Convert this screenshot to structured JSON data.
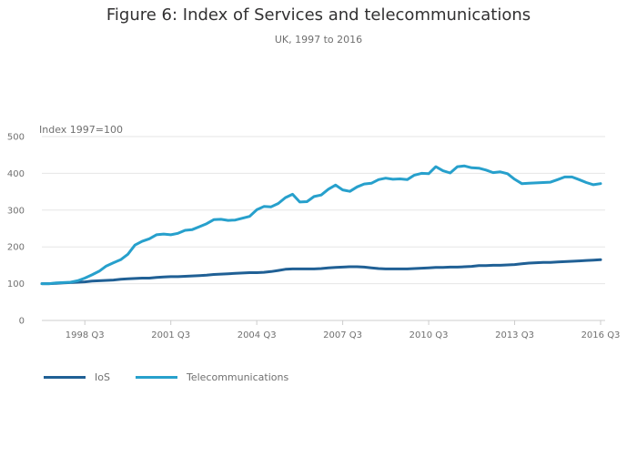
{
  "chart_data": {
    "type": "line",
    "title": "Figure 6: Index of Services and telecommunications",
    "subtitle": "UK, 1997 to 2016",
    "ylabel": "Index 1997=100",
    "xlabel": "",
    "ylim": [
      0,
      500
    ],
    "yticks": [
      0,
      100,
      200,
      300,
      400,
      500
    ],
    "xticks": [
      "1998 Q3",
      "2001 Q3",
      "2004 Q3",
      "2007 Q3",
      "2010 Q3",
      "2013 Q3",
      "2016 Q3"
    ],
    "grid": true,
    "legend": "bottom-left",
    "x": [
      "1997 Q1",
      "1997 Q2",
      "1997 Q3",
      "1997 Q4",
      "1998 Q1",
      "1998 Q2",
      "1998 Q3",
      "1998 Q4",
      "1999 Q1",
      "1999 Q2",
      "1999 Q3",
      "1999 Q4",
      "2000 Q1",
      "2000 Q2",
      "2000 Q3",
      "2000 Q4",
      "2001 Q1",
      "2001 Q2",
      "2001 Q3",
      "2001 Q4",
      "2002 Q1",
      "2002 Q2",
      "2002 Q3",
      "2002 Q4",
      "2003 Q1",
      "2003 Q2",
      "2003 Q3",
      "2003 Q4",
      "2004 Q1",
      "2004 Q2",
      "2004 Q3",
      "2004 Q4",
      "2005 Q1",
      "2005 Q2",
      "2005 Q3",
      "2005 Q4",
      "2006 Q1",
      "2006 Q2",
      "2006 Q3",
      "2006 Q4",
      "2007 Q1",
      "2007 Q2",
      "2007 Q3",
      "2007 Q4",
      "2008 Q1",
      "2008 Q2",
      "2008 Q3",
      "2008 Q4",
      "2009 Q1",
      "2009 Q2",
      "2009 Q3",
      "2009 Q4",
      "2010 Q1",
      "2010 Q2",
      "2010 Q3",
      "2010 Q4",
      "2011 Q1",
      "2011 Q2",
      "2011 Q3",
      "2011 Q4",
      "2012 Q1",
      "2012 Q2",
      "2012 Q3",
      "2012 Q4",
      "2013 Q1",
      "2013 Q2",
      "2013 Q3",
      "2013 Q4",
      "2014 Q1",
      "2014 Q2",
      "2014 Q3",
      "2014 Q4",
      "2015 Q1",
      "2015 Q2",
      "2015 Q3",
      "2015 Q4",
      "2016 Q1",
      "2016 Q2",
      "2016 Q3"
    ],
    "series": [
      {
        "name": "IoS",
        "color": "#206095",
        "values": [
          100,
          100,
          101,
          102,
          103,
          104,
          105,
          107,
          108,
          109,
          110,
          112,
          113,
          114,
          115,
          115,
          117,
          118,
          119,
          119,
          120,
          121,
          122,
          123,
          125,
          126,
          127,
          128,
          129,
          130,
          130,
          131,
          133,
          136,
          139,
          140,
          140,
          140,
          140,
          141,
          143,
          144,
          145,
          146,
          146,
          145,
          143,
          141,
          140,
          140,
          140,
          140,
          141,
          142,
          143,
          144,
          144,
          145,
          145,
          146,
          147,
          149,
          149,
          150,
          150,
          151,
          152,
          154,
          156,
          157,
          158,
          158,
          159,
          160,
          161,
          162,
          163,
          164,
          165
        ]
      },
      {
        "name": "Telecommunications",
        "color": "#27a0cc",
        "values": [
          100,
          100,
          102,
          103,
          104,
          108,
          115,
          124,
          134,
          148,
          157,
          165,
          180,
          205,
          215,
          222,
          233,
          235,
          233,
          237,
          245,
          247,
          255,
          263,
          274,
          275,
          272,
          273,
          278,
          283,
          301,
          310,
          309,
          318,
          334,
          343,
          322,
          323,
          337,
          341,
          357,
          368,
          355,
          351,
          363,
          371,
          373,
          383,
          387,
          384,
          385,
          383,
          395,
          400,
          399,
          418,
          407,
          401,
          418,
          420,
          415,
          414,
          409,
          402,
          404,
          399,
          384,
          372,
          373,
          374,
          375,
          376,
          383,
          390,
          390,
          383,
          375,
          369,
          372
        ]
      }
    ]
  }
}
